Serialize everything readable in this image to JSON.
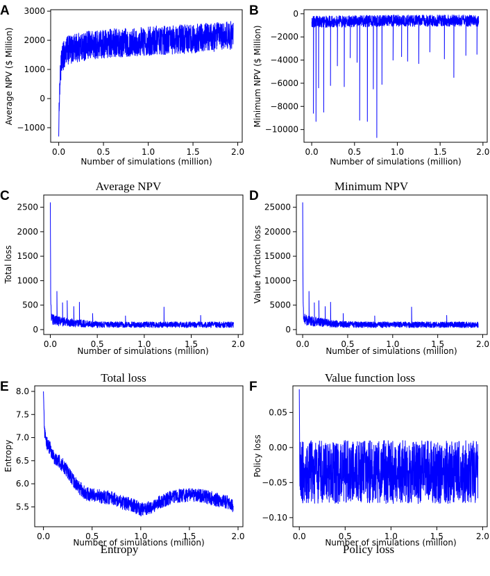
{
  "figure": {
    "colors": {
      "series": "#0000ff",
      "axis": "#000000",
      "background": "#ffffff"
    }
  },
  "chart_data": [
    {
      "id": "A",
      "type": "line",
      "letter": "A",
      "caption": "Average NPV",
      "xlabel": "Number of simulations (million)",
      "ylabel": "Average NPV ($ Million)",
      "xlim": [
        -0.09,
        2.05
      ],
      "ylim": [
        -1500,
        3050
      ],
      "xticks": [
        0.0,
        0.5,
        1.0,
        1.5,
        2.0
      ],
      "xtick_labels": [
        "0.0",
        "0.5",
        "1.0",
        "1.5",
        "2.0"
      ],
      "yticks": [
        -1000,
        0,
        1000,
        2000,
        3000
      ],
      "ytick_labels": [
        "−1000",
        "0",
        "1000",
        "2000",
        "3000"
      ],
      "series": [
        {
          "name": "Average NPV",
          "x": [
            0.0,
            0.005,
            0.01,
            0.02,
            0.03,
            0.05,
            0.08,
            0.1,
            0.15,
            0.2,
            0.3,
            0.4,
            0.5,
            0.6,
            0.7,
            0.8,
            0.9,
            1.0,
            1.1,
            1.2,
            1.3,
            1.4,
            1.5,
            1.6,
            1.7,
            1.8,
            1.9,
            1.95
          ],
          "mean": [
            -1300,
            -200,
            300,
            900,
            1200,
            1450,
            1600,
            1650,
            1700,
            1750,
            1800,
            1850,
            1880,
            1900,
            1920,
            1940,
            1960,
            1980,
            2000,
            2010,
            2020,
            2040,
            2060,
            2080,
            2100,
            2120,
            2150,
            2150
          ],
          "spread": [
            0,
            300,
            400,
            450,
            480,
            500,
            500,
            500,
            500,
            500,
            500,
            500,
            500,
            500,
            500,
            500,
            500,
            500,
            500,
            500,
            500,
            500,
            500,
            500,
            500,
            500,
            500,
            500
          ]
        }
      ]
    },
    {
      "id": "B",
      "type": "line",
      "letter": "B",
      "caption": "Minimum NPV",
      "xlabel": "Number of simulations (million)",
      "ylabel": "Minimum NPV ($ Million)",
      "xlim": [
        -0.09,
        2.05
      ],
      "ylim": [
        -11100,
        350
      ],
      "xticks": [
        0.0,
        0.5,
        1.0,
        1.5,
        2.0
      ],
      "xtick_labels": [
        "0.0",
        "0.5",
        "1.0",
        "1.5",
        "2.0"
      ],
      "yticks": [
        -10000,
        -8000,
        -6000,
        -4000,
        -2000,
        0
      ],
      "ytick_labels": [
        "−10000",
        "−8000",
        "−6000",
        "−4000",
        "−2000",
        "0"
      ],
      "series": [
        {
          "name": "Minimum NPV",
          "x": [
            0.0,
            0.5,
            1.0,
            1.5,
            1.95
          ],
          "mean": [
            -700,
            -650,
            -600,
            -600,
            -600
          ],
          "spread": [
            500,
            500,
            500,
            500,
            500
          ],
          "spikes": [
            {
              "x": 0.02,
              "y": -8600
            },
            {
              "x": 0.05,
              "y": -9300
            },
            {
              "x": 0.08,
              "y": -6400
            },
            {
              "x": 0.14,
              "y": -8500
            },
            {
              "x": 0.22,
              "y": -6200
            },
            {
              "x": 0.3,
              "y": -4500
            },
            {
              "x": 0.38,
              "y": -6300
            },
            {
              "x": 0.45,
              "y": -3800
            },
            {
              "x": 0.53,
              "y": -4200
            },
            {
              "x": 0.56,
              "y": -9200
            },
            {
              "x": 0.65,
              "y": -9300
            },
            {
              "x": 0.72,
              "y": -6500
            },
            {
              "x": 0.76,
              "y": -10700
            },
            {
              "x": 0.82,
              "y": -6100
            },
            {
              "x": 0.95,
              "y": -4000
            },
            {
              "x": 1.05,
              "y": -3700
            },
            {
              "x": 1.12,
              "y": -4100
            },
            {
              "x": 1.25,
              "y": -4300
            },
            {
              "x": 1.38,
              "y": -3300
            },
            {
              "x": 1.55,
              "y": -3900
            },
            {
              "x": 1.66,
              "y": -5500
            },
            {
              "x": 1.8,
              "y": -3600
            },
            {
              "x": 1.93,
              "y": -3500
            }
          ]
        }
      ]
    },
    {
      "id": "C",
      "type": "line",
      "letter": "C",
      "caption": "Total loss",
      "xlabel": "Number of simulations (million)",
      "ylabel": "Total loss",
      "xlim": [
        -0.07,
        2.05
      ],
      "ylim": [
        -100,
        2750
      ],
      "xticks": [
        0.0,
        0.5,
        1.0,
        1.5,
        2.0
      ],
      "xtick_labels": [
        "0.0",
        "0.5",
        "1.0",
        "1.5",
        "2.0"
      ],
      "yticks": [
        0,
        500,
        1000,
        1500,
        2000,
        2500
      ],
      "ytick_labels": [
        "0",
        "500",
        "1000",
        "1500",
        "2000",
        "2500"
      ],
      "series": [
        {
          "name": "Total loss",
          "x": [
            0.0,
            0.003,
            0.006,
            0.01,
            0.02,
            0.05,
            0.1,
            0.2,
            0.3,
            0.4,
            0.5,
            0.7,
            1.0,
            1.5,
            1.95
          ],
          "mean": [
            2600,
            1100,
            500,
            300,
            220,
            180,
            170,
            150,
            130,
            115,
            105,
            100,
            100,
            100,
            100
          ],
          "spread": [
            0,
            200,
            150,
            120,
            110,
            100,
            100,
            90,
            80,
            70,
            65,
            60,
            60,
            60,
            60
          ],
          "spikes": [
            {
              "x": 0.07,
              "y": 780
            },
            {
              "x": 0.13,
              "y": 550
            },
            {
              "x": 0.18,
              "y": 590
            },
            {
              "x": 0.25,
              "y": 470
            },
            {
              "x": 0.31,
              "y": 560
            },
            {
              "x": 0.45,
              "y": 330
            },
            {
              "x": 0.8,
              "y": 280
            },
            {
              "x": 1.21,
              "y": 460
            },
            {
              "x": 1.6,
              "y": 290
            }
          ]
        }
      ]
    },
    {
      "id": "D",
      "type": "line",
      "letter": "D",
      "caption": "Value function loss",
      "xlabel": "Number of simulations (million)",
      "ylabel": "Value function loss",
      "xlim": [
        -0.07,
        2.05
      ],
      "ylim": [
        -1000,
        27500
      ],
      "xticks": [
        0.0,
        0.5,
        1.0,
        1.5,
        2.0
      ],
      "xtick_labels": [
        "0.0",
        "0.5",
        "1.0",
        "1.5",
        "2.0"
      ],
      "yticks": [
        0,
        5000,
        10000,
        15000,
        20000,
        25000
      ],
      "ytick_labels": [
        "0",
        "5000",
        "10000",
        "15000",
        "20000",
        "25000"
      ],
      "series": [
        {
          "name": "Value function loss",
          "x": [
            0.0,
            0.003,
            0.006,
            0.01,
            0.02,
            0.05,
            0.1,
            0.2,
            0.3,
            0.4,
            0.5,
            0.7,
            1.0,
            1.5,
            1.95
          ],
          "mean": [
            26000,
            11000,
            5000,
            3000,
            2200,
            1800,
            1700,
            1500,
            1300,
            1150,
            1050,
            1000,
            1000,
            1000,
            1000
          ],
          "spread": [
            0,
            2000,
            1500,
            1200,
            1100,
            1000,
            1000,
            900,
            800,
            700,
            650,
            600,
            600,
            600,
            600
          ],
          "spikes": [
            {
              "x": 0.07,
              "y": 7800
            },
            {
              "x": 0.13,
              "y": 5500
            },
            {
              "x": 0.18,
              "y": 5900
            },
            {
              "x": 0.25,
              "y": 4700
            },
            {
              "x": 0.31,
              "y": 5600
            },
            {
              "x": 0.45,
              "y": 3300
            },
            {
              "x": 0.8,
              "y": 2800
            },
            {
              "x": 1.21,
              "y": 4600
            },
            {
              "x": 1.6,
              "y": 2900
            }
          ]
        }
      ]
    },
    {
      "id": "E",
      "type": "line",
      "letter": "E",
      "caption": "Entropy",
      "xlabel": "Number of simulations (million)",
      "ylabel": "Entropy",
      "xlim": [
        -0.09,
        2.05
      ],
      "ylim": [
        5.07,
        8.12
      ],
      "xticks": [
        0.0,
        0.5,
        1.0,
        1.5,
        2.0
      ],
      "xtick_labels": [
        "0.0",
        "0.5",
        "1.0",
        "1.5",
        "2.0"
      ],
      "yticks": [
        5.5,
        6.0,
        6.5,
        7.0,
        7.5,
        8.0
      ],
      "ytick_labels": [
        "5.5",
        "6.0",
        "6.5",
        "7.0",
        "7.5",
        "8.0"
      ],
      "series": [
        {
          "name": "Entropy",
          "x": [
            0.0,
            0.01,
            0.03,
            0.06,
            0.1,
            0.15,
            0.2,
            0.25,
            0.3,
            0.35,
            0.4,
            0.45,
            0.5,
            0.6,
            0.7,
            0.8,
            0.9,
            1.0,
            1.1,
            1.2,
            1.3,
            1.4,
            1.5,
            1.6,
            1.7,
            1.8,
            1.9,
            1.95
          ],
          "mean": [
            8.0,
            7.1,
            6.9,
            6.8,
            6.6,
            6.5,
            6.4,
            6.25,
            6.1,
            5.95,
            5.85,
            5.78,
            5.75,
            5.72,
            5.7,
            5.6,
            5.55,
            5.45,
            5.5,
            5.6,
            5.7,
            5.75,
            5.75,
            5.75,
            5.7,
            5.65,
            5.6,
            5.5
          ],
          "spread": [
            0,
            0.15,
            0.15,
            0.15,
            0.15,
            0.15,
            0.15,
            0.15,
            0.15,
            0.15,
            0.15,
            0.15,
            0.15,
            0.15,
            0.15,
            0.15,
            0.15,
            0.15,
            0.15,
            0.15,
            0.15,
            0.15,
            0.15,
            0.15,
            0.15,
            0.15,
            0.15,
            0.15
          ]
        }
      ]
    },
    {
      "id": "F",
      "type": "line",
      "letter": "F",
      "caption": "Policy loss",
      "xlabel": "Number of simulations (million)",
      "ylabel": "Policy loss",
      "xlim": [
        -0.07,
        2.05
      ],
      "ylim": [
        -0.113,
        0.088
      ],
      "xticks": [
        0.0,
        0.5,
        1.0,
        1.5,
        2.0
      ],
      "xtick_labels": [
        "0.0",
        "0.5",
        "1.0",
        "1.5",
        "2.0"
      ],
      "yticks": [
        -0.1,
        -0.05,
        0.0,
        0.05
      ],
      "ytick_labels": [
        "−0.10",
        "−0.05",
        "0.00",
        "0.05"
      ],
      "series": [
        {
          "name": "Policy loss",
          "x": [
            0.0,
            0.005,
            0.02,
            0.5,
            1.0,
            1.5,
            1.95
          ],
          "mean": [
            0.083,
            -0.04,
            -0.035,
            -0.035,
            -0.035,
            -0.035,
            -0.035
          ],
          "spread": [
            0,
            0.045,
            0.045,
            0.045,
            0.045,
            0.045,
            0.045
          ]
        }
      ]
    }
  ]
}
